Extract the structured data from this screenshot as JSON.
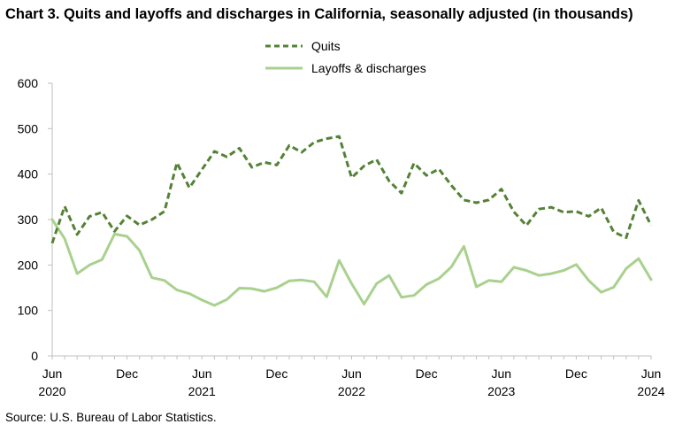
{
  "chart_data": {
    "type": "line",
    "title": "Chart 3. Quits and layoffs and discharges in California, seasonally adjusted (in thousands)",
    "source": "Source: U.S. Bureau of Labor Statistics.",
    "ylim": [
      0,
      600
    ],
    "yticks": [
      "0",
      "100",
      "200",
      "300",
      "400",
      "500",
      "600"
    ],
    "xtick_labels": [
      {
        "index": 0,
        "month": "Jun",
        "year": "2020"
      },
      {
        "index": 6,
        "month": "Dec",
        "year": ""
      },
      {
        "index": 12,
        "month": "Jun",
        "year": "2021"
      },
      {
        "index": 18,
        "month": "Dec",
        "year": ""
      },
      {
        "index": 24,
        "month": "Jun",
        "year": "2022"
      },
      {
        "index": 30,
        "month": "Dec",
        "year": ""
      },
      {
        "index": 36,
        "month": "Jun",
        "year": "2023"
      },
      {
        "index": 42,
        "month": "Dec",
        "year": ""
      },
      {
        "index": 48,
        "month": "Jun",
        "year": "2024"
      }
    ],
    "x": [
      "Jun 2020",
      "Jul 2020",
      "Aug 2020",
      "Sep 2020",
      "Oct 2020",
      "Nov 2020",
      "Dec 2020",
      "Jan 2021",
      "Feb 2021",
      "Mar 2021",
      "Apr 2021",
      "May 2021",
      "Jun 2021",
      "Jul 2021",
      "Aug 2021",
      "Sep 2021",
      "Oct 2021",
      "Nov 2021",
      "Dec 2021",
      "Jan 2022",
      "Feb 2022",
      "Mar 2022",
      "Apr 2022",
      "May 2022",
      "Jun 2022",
      "Jul 2022",
      "Aug 2022",
      "Sep 2022",
      "Oct 2022",
      "Nov 2022",
      "Dec 2022",
      "Jan 2023",
      "Feb 2023",
      "Mar 2023",
      "Apr 2023",
      "May 2023",
      "Jun 2023",
      "Jul 2023",
      "Aug 2023",
      "Sep 2023",
      "Oct 2023",
      "Nov 2023",
      "Dec 2023",
      "Jan 2024",
      "Feb 2024",
      "Mar 2024",
      "Apr 2024",
      "May 2024",
      "Jun 2024"
    ],
    "grid": false,
    "legend_position": "top-center",
    "series": [
      {
        "name": "Quits",
        "color": "#548235",
        "style": "dashed",
        "values": [
          248,
          329,
          267,
          307,
          316,
          274,
          308,
          288,
          300,
          318,
          425,
          370,
          410,
          450,
          438,
          457,
          415,
          426,
          420,
          463,
          448,
          470,
          478,
          483,
          392,
          418,
          432,
          385,
          358,
          424,
          397,
          411,
          375,
          343,
          337,
          343,
          367,
          317,
          287,
          323,
          327,
          316,
          318,
          307,
          326,
          273,
          260,
          342,
          287
        ]
      },
      {
        "name": "Layoffs & discharges",
        "color": "#A9D18E",
        "style": "solid",
        "values": [
          300,
          258,
          181,
          200,
          212,
          268,
          263,
          232,
          172,
          166,
          145,
          137,
          123,
          111,
          124,
          149,
          148,
          142,
          150,
          165,
          167,
          163,
          130,
          210,
          159,
          114,
          159,
          177,
          129,
          133,
          157,
          170,
          196,
          241,
          152,
          166,
          163,
          195,
          188,
          177,
          181,
          188,
          201,
          166,
          140,
          151,
          192,
          214,
          168
        ]
      }
    ]
  }
}
